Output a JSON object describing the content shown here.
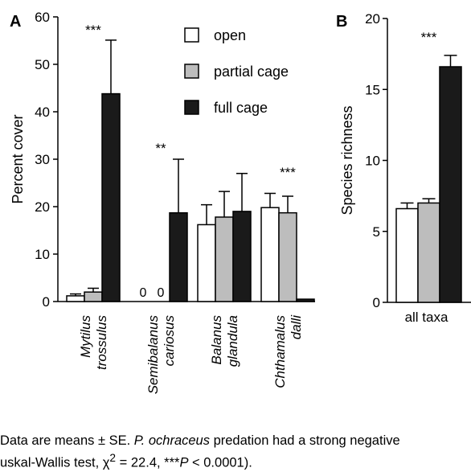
{
  "chart_data": [
    {
      "type": "bar",
      "panel_label": "A",
      "ylabel": "Percent cover",
      "ylim": [
        0,
        60
      ],
      "yticks": [
        "0",
        "10",
        "20",
        "30",
        "40",
        "50",
        "60"
      ],
      "categories": [
        {
          "line1": "Mytilus",
          "line2": "trossulus"
        },
        {
          "line1": "Semibalanus",
          "line2": "cariosus"
        },
        {
          "line1": "Balanus",
          "line2": "glandula"
        },
        {
          "line1": "Chthamalus",
          "line2": "dalli"
        }
      ],
      "series": [
        {
          "name": "open",
          "color": "#ffffff",
          "values": [
            1.2,
            0,
            16.2,
            19.8
          ],
          "errors": [
            0.4,
            0,
            4.2,
            3.0
          ]
        },
        {
          "name": "partial cage",
          "color": "#bdbdbd",
          "values": [
            2.0,
            0,
            17.8,
            18.7
          ],
          "errors": [
            0.8,
            0,
            5.4,
            3.5
          ]
        },
        {
          "name": "full cage",
          "color": "#1a1a1a",
          "values": [
            43.8,
            18.7,
            19.0,
            0.5
          ],
          "errors": [
            11.3,
            11.3,
            8.0,
            0
          ]
        }
      ],
      "zero_labels": [
        {
          "category": 1,
          "series": 0,
          "text": "0"
        },
        {
          "category": 1,
          "series": 1,
          "text": "0"
        }
      ],
      "significance": [
        {
          "category": 0,
          "text": "***"
        },
        {
          "category": 1,
          "text": "**"
        },
        {
          "category": 3,
          "text": "***"
        }
      ],
      "legend": {
        "position": "top-center",
        "entries": [
          "open",
          "partial cage",
          "full cage"
        ]
      }
    },
    {
      "type": "bar",
      "panel_label": "B",
      "ylabel": "Species richness",
      "ylim": [
        0,
        20
      ],
      "yticks": [
        "0",
        "5",
        "10",
        "15",
        "20"
      ],
      "categories": [
        "all taxa"
      ],
      "series": [
        {
          "name": "open",
          "color": "#ffffff",
          "values": [
            6.6
          ],
          "errors": [
            0.4
          ]
        },
        {
          "name": "partial cage",
          "color": "#bdbdbd",
          "values": [
            7.0
          ],
          "errors": [
            0.3
          ]
        },
        {
          "name": "full cage",
          "color": "#1a1a1a",
          "values": [
            16.6
          ],
          "errors": [
            0.8
          ]
        }
      ],
      "significance": [
        {
          "category": 0,
          "text": "***"
        }
      ]
    }
  ],
  "caption": {
    "line1": {
      "t1": "Data are means ± SE. ",
      "t2": "P. ochraceus",
      "t3": " predation had a strong negative"
    },
    "line2": {
      "t1": "uskal-Wallis test, χ",
      "t2": "2",
      "t3": " = 22.4, ",
      "t4": "***",
      "t5": "P",
      "t6": " < 0.0001)."
    }
  }
}
